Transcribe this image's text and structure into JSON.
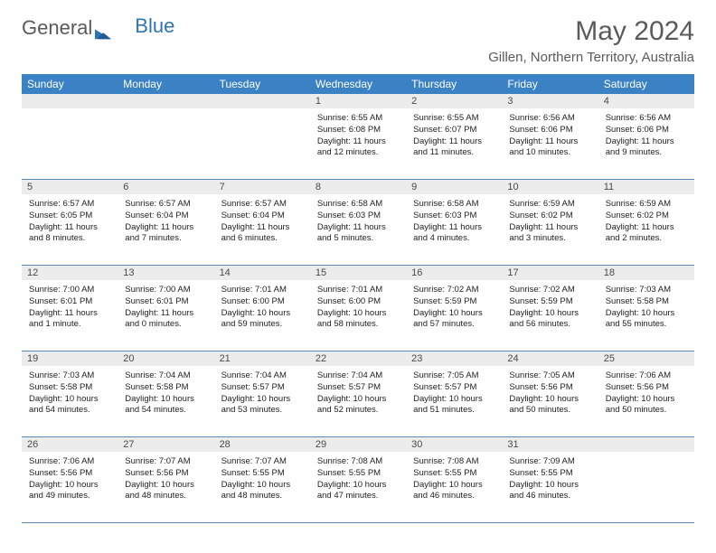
{
  "logo": {
    "text1": "General",
    "text2": "Blue"
  },
  "title": "May 2024",
  "location": "Gillen, Northern Territory, Australia",
  "header_bg": "#3b82c4",
  "daynum_bg": "#ececec",
  "border_color": "#5a8ab8",
  "days_of_week": [
    "Sunday",
    "Monday",
    "Tuesday",
    "Wednesday",
    "Thursday",
    "Friday",
    "Saturday"
  ],
  "weeks": [
    {
      "nums": [
        "",
        "",
        "",
        "1",
        "2",
        "3",
        "4"
      ],
      "cells": [
        null,
        null,
        null,
        {
          "sr": "Sunrise: 6:55 AM",
          "ss": "Sunset: 6:08 PM",
          "d1": "Daylight: 11 hours",
          "d2": "and 12 minutes."
        },
        {
          "sr": "Sunrise: 6:55 AM",
          "ss": "Sunset: 6:07 PM",
          "d1": "Daylight: 11 hours",
          "d2": "and 11 minutes."
        },
        {
          "sr": "Sunrise: 6:56 AM",
          "ss": "Sunset: 6:06 PM",
          "d1": "Daylight: 11 hours",
          "d2": "and 10 minutes."
        },
        {
          "sr": "Sunrise: 6:56 AM",
          "ss": "Sunset: 6:06 PM",
          "d1": "Daylight: 11 hours",
          "d2": "and 9 minutes."
        }
      ]
    },
    {
      "nums": [
        "5",
        "6",
        "7",
        "8",
        "9",
        "10",
        "11"
      ],
      "cells": [
        {
          "sr": "Sunrise: 6:57 AM",
          "ss": "Sunset: 6:05 PM",
          "d1": "Daylight: 11 hours",
          "d2": "and 8 minutes."
        },
        {
          "sr": "Sunrise: 6:57 AM",
          "ss": "Sunset: 6:04 PM",
          "d1": "Daylight: 11 hours",
          "d2": "and 7 minutes."
        },
        {
          "sr": "Sunrise: 6:57 AM",
          "ss": "Sunset: 6:04 PM",
          "d1": "Daylight: 11 hours",
          "d2": "and 6 minutes."
        },
        {
          "sr": "Sunrise: 6:58 AM",
          "ss": "Sunset: 6:03 PM",
          "d1": "Daylight: 11 hours",
          "d2": "and 5 minutes."
        },
        {
          "sr": "Sunrise: 6:58 AM",
          "ss": "Sunset: 6:03 PM",
          "d1": "Daylight: 11 hours",
          "d2": "and 4 minutes."
        },
        {
          "sr": "Sunrise: 6:59 AM",
          "ss": "Sunset: 6:02 PM",
          "d1": "Daylight: 11 hours",
          "d2": "and 3 minutes."
        },
        {
          "sr": "Sunrise: 6:59 AM",
          "ss": "Sunset: 6:02 PM",
          "d1": "Daylight: 11 hours",
          "d2": "and 2 minutes."
        }
      ]
    },
    {
      "nums": [
        "12",
        "13",
        "14",
        "15",
        "16",
        "17",
        "18"
      ],
      "cells": [
        {
          "sr": "Sunrise: 7:00 AM",
          "ss": "Sunset: 6:01 PM",
          "d1": "Daylight: 11 hours",
          "d2": "and 1 minute."
        },
        {
          "sr": "Sunrise: 7:00 AM",
          "ss": "Sunset: 6:01 PM",
          "d1": "Daylight: 11 hours",
          "d2": "and 0 minutes."
        },
        {
          "sr": "Sunrise: 7:01 AM",
          "ss": "Sunset: 6:00 PM",
          "d1": "Daylight: 10 hours",
          "d2": "and 59 minutes."
        },
        {
          "sr": "Sunrise: 7:01 AM",
          "ss": "Sunset: 6:00 PM",
          "d1": "Daylight: 10 hours",
          "d2": "and 58 minutes."
        },
        {
          "sr": "Sunrise: 7:02 AM",
          "ss": "Sunset: 5:59 PM",
          "d1": "Daylight: 10 hours",
          "d2": "and 57 minutes."
        },
        {
          "sr": "Sunrise: 7:02 AM",
          "ss": "Sunset: 5:59 PM",
          "d1": "Daylight: 10 hours",
          "d2": "and 56 minutes."
        },
        {
          "sr": "Sunrise: 7:03 AM",
          "ss": "Sunset: 5:58 PM",
          "d1": "Daylight: 10 hours",
          "d2": "and 55 minutes."
        }
      ]
    },
    {
      "nums": [
        "19",
        "20",
        "21",
        "22",
        "23",
        "24",
        "25"
      ],
      "cells": [
        {
          "sr": "Sunrise: 7:03 AM",
          "ss": "Sunset: 5:58 PM",
          "d1": "Daylight: 10 hours",
          "d2": "and 54 minutes."
        },
        {
          "sr": "Sunrise: 7:04 AM",
          "ss": "Sunset: 5:58 PM",
          "d1": "Daylight: 10 hours",
          "d2": "and 54 minutes."
        },
        {
          "sr": "Sunrise: 7:04 AM",
          "ss": "Sunset: 5:57 PM",
          "d1": "Daylight: 10 hours",
          "d2": "and 53 minutes."
        },
        {
          "sr": "Sunrise: 7:04 AM",
          "ss": "Sunset: 5:57 PM",
          "d1": "Daylight: 10 hours",
          "d2": "and 52 minutes."
        },
        {
          "sr": "Sunrise: 7:05 AM",
          "ss": "Sunset: 5:57 PM",
          "d1": "Daylight: 10 hours",
          "d2": "and 51 minutes."
        },
        {
          "sr": "Sunrise: 7:05 AM",
          "ss": "Sunset: 5:56 PM",
          "d1": "Daylight: 10 hours",
          "d2": "and 50 minutes."
        },
        {
          "sr": "Sunrise: 7:06 AM",
          "ss": "Sunset: 5:56 PM",
          "d1": "Daylight: 10 hours",
          "d2": "and 50 minutes."
        }
      ]
    },
    {
      "nums": [
        "26",
        "27",
        "28",
        "29",
        "30",
        "31",
        ""
      ],
      "cells": [
        {
          "sr": "Sunrise: 7:06 AM",
          "ss": "Sunset: 5:56 PM",
          "d1": "Daylight: 10 hours",
          "d2": "and 49 minutes."
        },
        {
          "sr": "Sunrise: 7:07 AM",
          "ss": "Sunset: 5:56 PM",
          "d1": "Daylight: 10 hours",
          "d2": "and 48 minutes."
        },
        {
          "sr": "Sunrise: 7:07 AM",
          "ss": "Sunset: 5:55 PM",
          "d1": "Daylight: 10 hours",
          "d2": "and 48 minutes."
        },
        {
          "sr": "Sunrise: 7:08 AM",
          "ss": "Sunset: 5:55 PM",
          "d1": "Daylight: 10 hours",
          "d2": "and 47 minutes."
        },
        {
          "sr": "Sunrise: 7:08 AM",
          "ss": "Sunset: 5:55 PM",
          "d1": "Daylight: 10 hours",
          "d2": "and 46 minutes."
        },
        {
          "sr": "Sunrise: 7:09 AM",
          "ss": "Sunset: 5:55 PM",
          "d1": "Daylight: 10 hours",
          "d2": "and 46 minutes."
        },
        null
      ]
    }
  ]
}
